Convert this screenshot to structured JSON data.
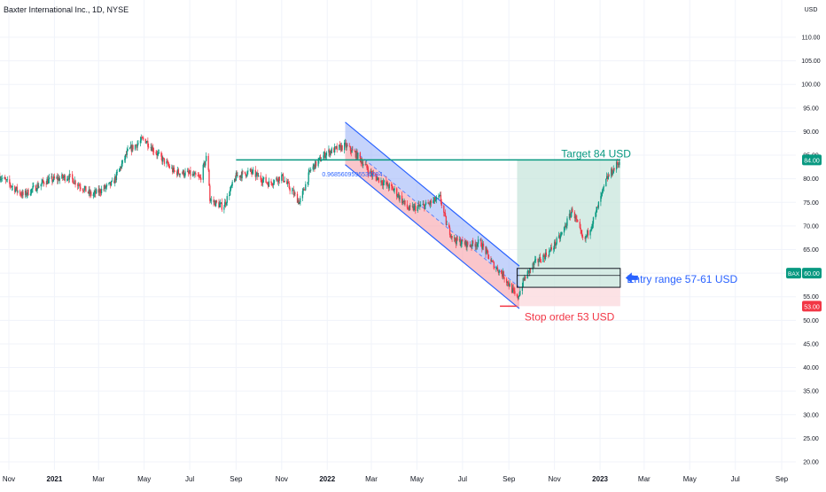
{
  "header": {
    "title": "Baxter International Inc., 1D, NYSE"
  },
  "chart_data": {
    "type": "candlestick",
    "currency": "USD",
    "ylim": [
      20,
      115
    ],
    "y_ticks": [
      {
        "value": 110,
        "label": "110.00"
      },
      {
        "value": 105,
        "label": "105.00"
      },
      {
        "value": 100,
        "label": "100.00"
      },
      {
        "value": 95,
        "label": "95.00"
      },
      {
        "value": 90,
        "label": "90.00"
      },
      {
        "value": 85,
        "label": "85.00"
      },
      {
        "value": 80,
        "label": "80.00"
      },
      {
        "value": 75,
        "label": "75.00"
      },
      {
        "value": 70,
        "label": "70.00"
      },
      {
        "value": 65,
        "label": "65.00"
      },
      {
        "value": 55,
        "label": "55.00"
      },
      {
        "value": 50,
        "label": "50.00"
      },
      {
        "value": 45,
        "label": "45.00"
      },
      {
        "value": 40,
        "label": "40.00"
      },
      {
        "value": 35,
        "label": "35.00"
      },
      {
        "value": 30,
        "label": "30.00"
      },
      {
        "value": 25,
        "label": "25.00"
      },
      {
        "value": 20,
        "label": "20.00"
      }
    ],
    "x_ticks": [
      {
        "date": "2020-11-01",
        "label": "Nov",
        "bold": false
      },
      {
        "date": "2021-01-01",
        "label": "2021",
        "bold": true
      },
      {
        "date": "2021-03-01",
        "label": "Mar",
        "bold": false
      },
      {
        "date": "2021-05-01",
        "label": "May",
        "bold": false
      },
      {
        "date": "2021-07-01",
        "label": "Jul",
        "bold": false
      },
      {
        "date": "2021-09-01",
        "label": "Sep",
        "bold": false
      },
      {
        "date": "2021-11-01",
        "label": "Nov",
        "bold": false
      },
      {
        "date": "2022-01-01",
        "label": "2022",
        "bold": true
      },
      {
        "date": "2022-03-01",
        "label": "Mar",
        "bold": false
      },
      {
        "date": "2022-05-01",
        "label": "May",
        "bold": false
      },
      {
        "date": "2022-07-01",
        "label": "Jul",
        "bold": false
      },
      {
        "date": "2022-09-01",
        "label": "Sep",
        "bold": false
      },
      {
        "date": "2022-11-01",
        "label": "Nov",
        "bold": false
      },
      {
        "date": "2023-01-01",
        "label": "2023",
        "bold": true
      },
      {
        "date": "2023-03-01",
        "label": "Mar",
        "bold": false
      },
      {
        "date": "2023-05-01",
        "label": "May",
        "bold": false
      },
      {
        "date": "2023-07-01",
        "label": "Jul",
        "bold": false
      },
      {
        "date": "2023-09-01",
        "label": "Sep",
        "bold": false
      }
    ],
    "price_path": [
      {
        "date": "2020-10-20",
        "close": 80.5
      },
      {
        "date": "2020-11-20",
        "close": 76.5
      },
      {
        "date": "2020-12-20",
        "close": 79.5
      },
      {
        "date": "2021-01-20",
        "close": 80.5
      },
      {
        "date": "2021-02-20",
        "close": 76.5
      },
      {
        "date": "2021-03-20",
        "close": 79.0
      },
      {
        "date": "2021-04-10",
        "close": 86.0
      },
      {
        "date": "2021-05-01",
        "close": 88.5
      },
      {
        "date": "2021-05-20",
        "close": 85.0
      },
      {
        "date": "2021-06-10",
        "close": 81.5
      },
      {
        "date": "2021-07-01",
        "close": 81.0
      },
      {
        "date": "2021-07-15",
        "close": 80.0
      },
      {
        "date": "2021-07-25",
        "close": 85.5
      },
      {
        "date": "2021-07-28",
        "close": 75.5
      },
      {
        "date": "2021-08-15",
        "close": 74.0
      },
      {
        "date": "2021-09-01",
        "close": 80.5
      },
      {
        "date": "2021-09-20",
        "close": 81.5
      },
      {
        "date": "2021-10-15",
        "close": 79.0
      },
      {
        "date": "2021-11-01",
        "close": 80.5
      },
      {
        "date": "2021-11-25",
        "close": 75.0
      },
      {
        "date": "2021-12-10",
        "close": 82.0
      },
      {
        "date": "2021-12-31",
        "close": 85.5
      },
      {
        "date": "2022-01-25",
        "close": 87.0
      },
      {
        "date": "2022-02-10",
        "close": 85.0
      },
      {
        "date": "2022-03-01",
        "close": 81.0
      },
      {
        "date": "2022-04-01",
        "close": 77.5
      },
      {
        "date": "2022-04-20",
        "close": 73.5
      },
      {
        "date": "2022-05-15",
        "close": 74.5
      },
      {
        "date": "2022-06-01",
        "close": 76.0
      },
      {
        "date": "2022-06-10",
        "close": 70.0
      },
      {
        "date": "2022-06-20",
        "close": 67.0
      },
      {
        "date": "2022-07-10",
        "close": 66.0
      },
      {
        "date": "2022-07-25",
        "close": 66.5
      },
      {
        "date": "2022-08-10",
        "close": 62.0
      },
      {
        "date": "2022-08-25",
        "close": 59.5
      },
      {
        "date": "2022-09-05",
        "close": 56.5
      },
      {
        "date": "2022-09-12",
        "close": 54.5
      },
      {
        "date": "2022-09-22",
        "close": 59.0
      },
      {
        "date": "2022-10-05",
        "close": 62.0
      },
      {
        "date": "2022-10-25",
        "close": 64.5
      },
      {
        "date": "2022-11-10",
        "close": 68.0
      },
      {
        "date": "2022-11-25",
        "close": 73.5
      },
      {
        "date": "2022-12-10",
        "close": 66.5
      },
      {
        "date": "2022-12-25",
        "close": 72.0
      },
      {
        "date": "2023-01-10",
        "close": 80.0
      },
      {
        "date": "2023-01-28",
        "close": 84.0
      }
    ],
    "channel": {
      "upper": {
        "start": {
          "date": "2022-01-25",
          "value": 92.0
        },
        "end": {
          "date": "2022-09-15",
          "value": 61.5
        }
      },
      "middle": {
        "start": {
          "date": "2022-01-25",
          "value": 87.5
        },
        "end": {
          "date": "2022-09-15",
          "value": 57.0
        }
      },
      "lower": {
        "start": {
          "date": "2022-01-25",
          "value": 83.0
        },
        "end": {
          "date": "2022-09-15",
          "value": 52.5
        }
      },
      "upper_fill_color": "#9fb6f8",
      "lower_fill_color": "#f6a0a8",
      "line_color": "#2962ff",
      "label": "0.9685609596530094",
      "label_position": {
        "date": "2021-12-25",
        "value": 80.5
      }
    },
    "target_line": {
      "value": 84.0,
      "from": "2021-09-01",
      "to": "2023-01-28",
      "color": "#089981"
    },
    "stop_line": {
      "value": 53.0,
      "from": "2022-08-20",
      "to": "2022-09-12",
      "color": "#f23645"
    },
    "position_box": {
      "from": "2022-09-12",
      "to": "2023-01-28",
      "entry": 57.0,
      "target": 84.0,
      "stop": 53.0,
      "profit_fill": "#c8e6dc",
      "loss_fill": "#fcdde0"
    },
    "entry_range_box": {
      "from": "2022-09-12",
      "to": "2023-01-28",
      "low": 57.0,
      "high": 61.0
    },
    "annotations": [
      {
        "id": "target",
        "text": "Target 84 USD",
        "date": "2022-11-10",
        "value": 84.5,
        "color": "#089981"
      },
      {
        "id": "entry",
        "text": "Entry range 57-61 USD",
        "date": "2023-02-06",
        "value": 58.0,
        "color": "#2962ff"
      },
      {
        "id": "stop",
        "text": "Stop order 53 USD",
        "date": "2022-09-22",
        "value": 50.0,
        "color": "#f23645"
      }
    ],
    "price_labels": [
      {
        "id": "target",
        "value": 84.0,
        "text": "84.00",
        "color": "#089981"
      },
      {
        "id": "current",
        "value": 60.0,
        "text": "60.00",
        "ticker": "BAX",
        "color": "#089981"
      },
      {
        "id": "stop",
        "value": 53.0,
        "text": "53.00",
        "color": "#f23645"
      }
    ],
    "colors": {
      "up": "#089981",
      "down": "#f23645",
      "grid": "#f0f3fa",
      "axis_text": "#131722"
    }
  }
}
